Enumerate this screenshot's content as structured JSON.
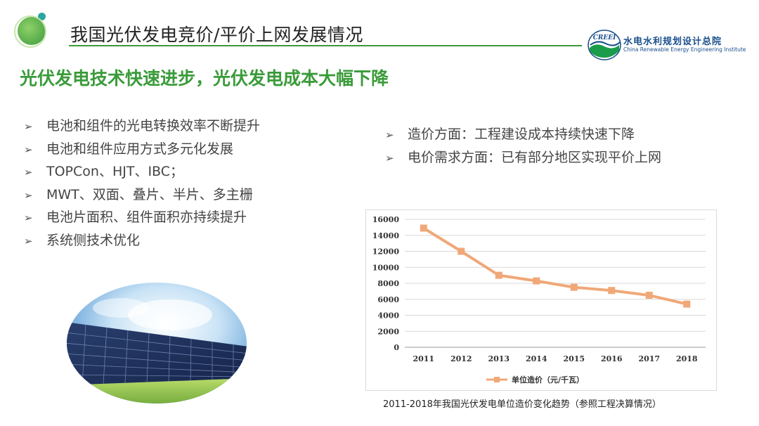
{
  "header": {
    "title": "我国光伏发电竞价/平价上网发展情况",
    "org_name_cn": "水电水利规划设计总院",
    "org_name_en": "China Renewable Energy Engineering Institute",
    "logo_abbr": "CREEI"
  },
  "subtitle": "光伏发电技术快速进步，光伏发电成本大幅下降",
  "left_bullets": [
    "电池和组件的光电转换效率不断提升",
    "电池和组件应用方式多元化发展",
    "TOPCon、HJT、IBC；",
    "MWT、双面、叠片、半片、多主栅",
    "电池片面积、组件面积亦持续提升",
    "系统侧技术优化"
  ],
  "right_bullets": [
    "造价方面：工程建设成本持续快速下降",
    "电价需求方面：已有部分地区实现平价上网"
  ],
  "bullet_marker": "➢",
  "chart_data": {
    "type": "line",
    "categories": [
      "2011",
      "2012",
      "2013",
      "2014",
      "2015",
      "2016",
      "2017",
      "2018"
    ],
    "series": [
      {
        "name": "单位造价（元/千瓦）",
        "values": [
          14900,
          12000,
          9000,
          8300,
          7500,
          7100,
          6500,
          5400
        ]
      }
    ],
    "ylim": [
      0,
      16000
    ],
    "yticks": [
      0,
      2000,
      4000,
      6000,
      8000,
      10000,
      12000,
      14000,
      16000
    ],
    "grid": true,
    "legend": "bottom",
    "color": "#f0a878"
  },
  "caption": "2011-2018年我国光伏发电单位造价变化趋势（参照工程决算情况）",
  "colors": {
    "accent_green": "#3a9b3a",
    "logo_blue": "#1a4f8c"
  }
}
